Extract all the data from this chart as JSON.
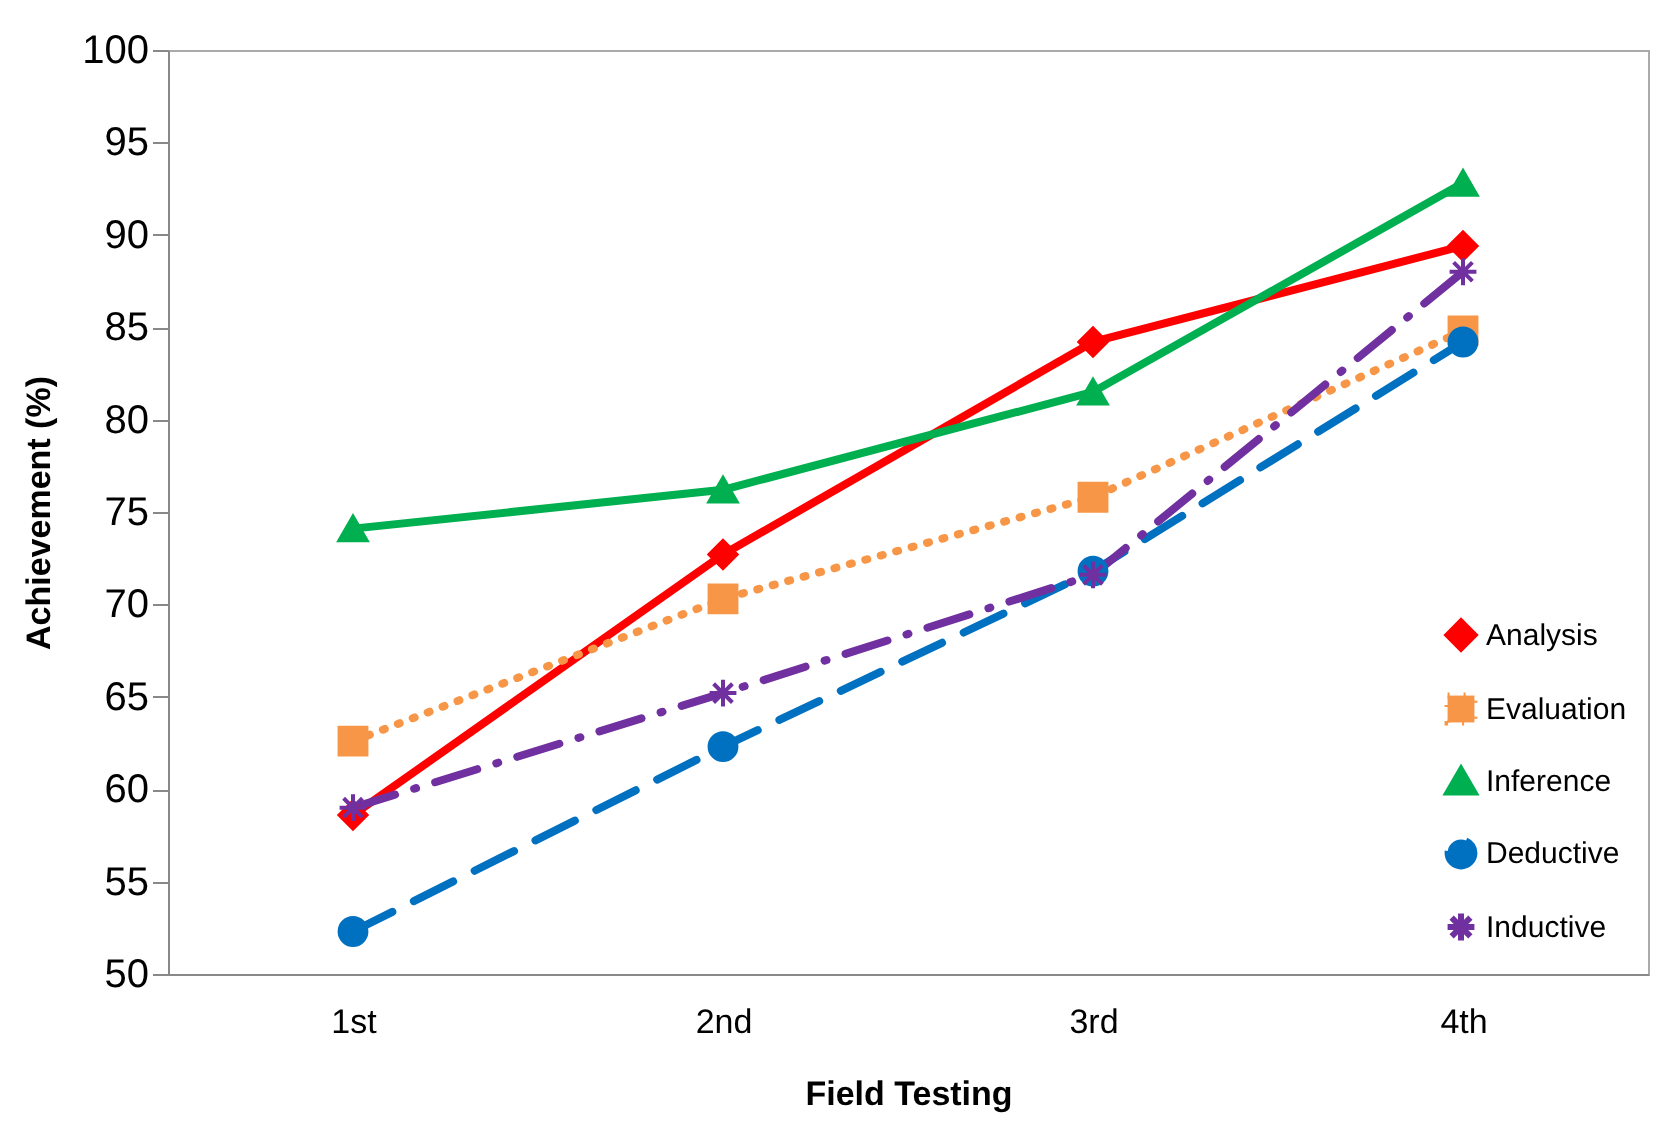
{
  "chart_data": {
    "type": "line",
    "xlabel": "Field Testing",
    "ylabel": "Achievement (%)",
    "categories": [
      "1st",
      "2nd",
      "3rd",
      "4th"
    ],
    "series": [
      {
        "name": "Analysis",
        "color": "#ff0000",
        "marker": "diamond",
        "line_style": "solid",
        "values": [
          58.6,
          72.7,
          84.2,
          89.4
        ]
      },
      {
        "name": "Evaluation",
        "color": "#f79646",
        "marker": "square",
        "line_style": "dotted",
        "values": [
          62.6,
          70.3,
          75.8,
          84.8
        ]
      },
      {
        "name": "Inference",
        "color": "#00b050",
        "marker": "triangle",
        "line_style": "solid",
        "values": [
          74.1,
          76.2,
          81.5,
          92.8
        ]
      },
      {
        "name": "Deductive",
        "color": "#0070c0",
        "marker": "circle",
        "line_style": "dashed",
        "values": [
          52.3,
          62.3,
          71.8,
          84.2
        ]
      },
      {
        "name": "Inductive",
        "color": "#7030a0",
        "marker": "cross",
        "line_style": "dashdot",
        "values": [
          59.0,
          65.2,
          71.6,
          88.0
        ]
      }
    ],
    "ylim": [
      50,
      100
    ],
    "yticks": [
      50,
      55,
      60,
      65,
      70,
      75,
      80,
      85,
      90,
      95,
      100
    ],
    "grid": false,
    "legend": "bottom right"
  }
}
